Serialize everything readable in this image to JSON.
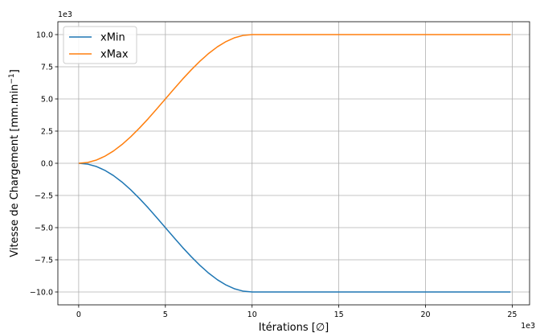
{
  "chart_data": {
    "type": "line",
    "xlabel": "Itérations [∅]",
    "ylabel_main": "Vitesse de Chargement [mm.min",
    "ylabel_sup": "−1",
    "ylabel_close": "]",
    "x_offset": "1e3",
    "y_offset": "1e3",
    "xlim": [
      -1.2,
      26.0
    ],
    "ylim": [
      -11.0,
      11.0
    ],
    "x_ticks": [
      0,
      5,
      10,
      15,
      20,
      25
    ],
    "x_tick_labels": [
      "0",
      "5",
      "10",
      "15",
      "20",
      "25"
    ],
    "y_ticks": [
      -10,
      -7.5,
      -5,
      -2.5,
      0,
      2.5,
      5,
      7.5,
      10
    ],
    "y_tick_labels": [
      "−10.0",
      "−7.5",
      "−5.0",
      "−2.5",
      "0.0",
      "2.5",
      "5.0",
      "7.5",
      "10.0"
    ],
    "grid": true,
    "legend_position": "top-left",
    "series": [
      {
        "name": "xMin",
        "color": "#1f77b4",
        "x": [
          0,
          0.5,
          1,
          1.5,
          2,
          2.5,
          3,
          3.5,
          4,
          4.5,
          5,
          5.5,
          6,
          6.5,
          7,
          7.5,
          8,
          8.5,
          9,
          9.5,
          10,
          12,
          14,
          16,
          18,
          20,
          22,
          24,
          24.9
        ],
        "y": [
          0,
          -0.06,
          -0.24,
          -0.54,
          -0.95,
          -1.46,
          -2.06,
          -2.73,
          -3.45,
          -4.22,
          -5.0,
          -5.78,
          -6.55,
          -7.27,
          -7.94,
          -8.54,
          -9.05,
          -9.46,
          -9.76,
          -9.94,
          -10.0,
          -10.0,
          -10.0,
          -10.0,
          -10.0,
          -10.0,
          -10.0,
          -10.0,
          -10.0
        ]
      },
      {
        "name": "xMax",
        "color": "#ff7f0e",
        "x": [
          0,
          0.5,
          1,
          1.5,
          2,
          2.5,
          3,
          3.5,
          4,
          4.5,
          5,
          5.5,
          6,
          6.5,
          7,
          7.5,
          8,
          8.5,
          9,
          9.5,
          10,
          12,
          14,
          16,
          18,
          20,
          22,
          24,
          24.9
        ],
        "y": [
          0,
          0.06,
          0.24,
          0.54,
          0.95,
          1.46,
          2.06,
          2.73,
          3.45,
          4.22,
          5.0,
          5.78,
          6.55,
          7.27,
          7.94,
          8.54,
          9.05,
          9.46,
          9.76,
          9.94,
          10.0,
          10.0,
          10.0,
          10.0,
          10.0,
          10.0,
          10.0,
          10.0,
          10.0
        ]
      }
    ]
  }
}
